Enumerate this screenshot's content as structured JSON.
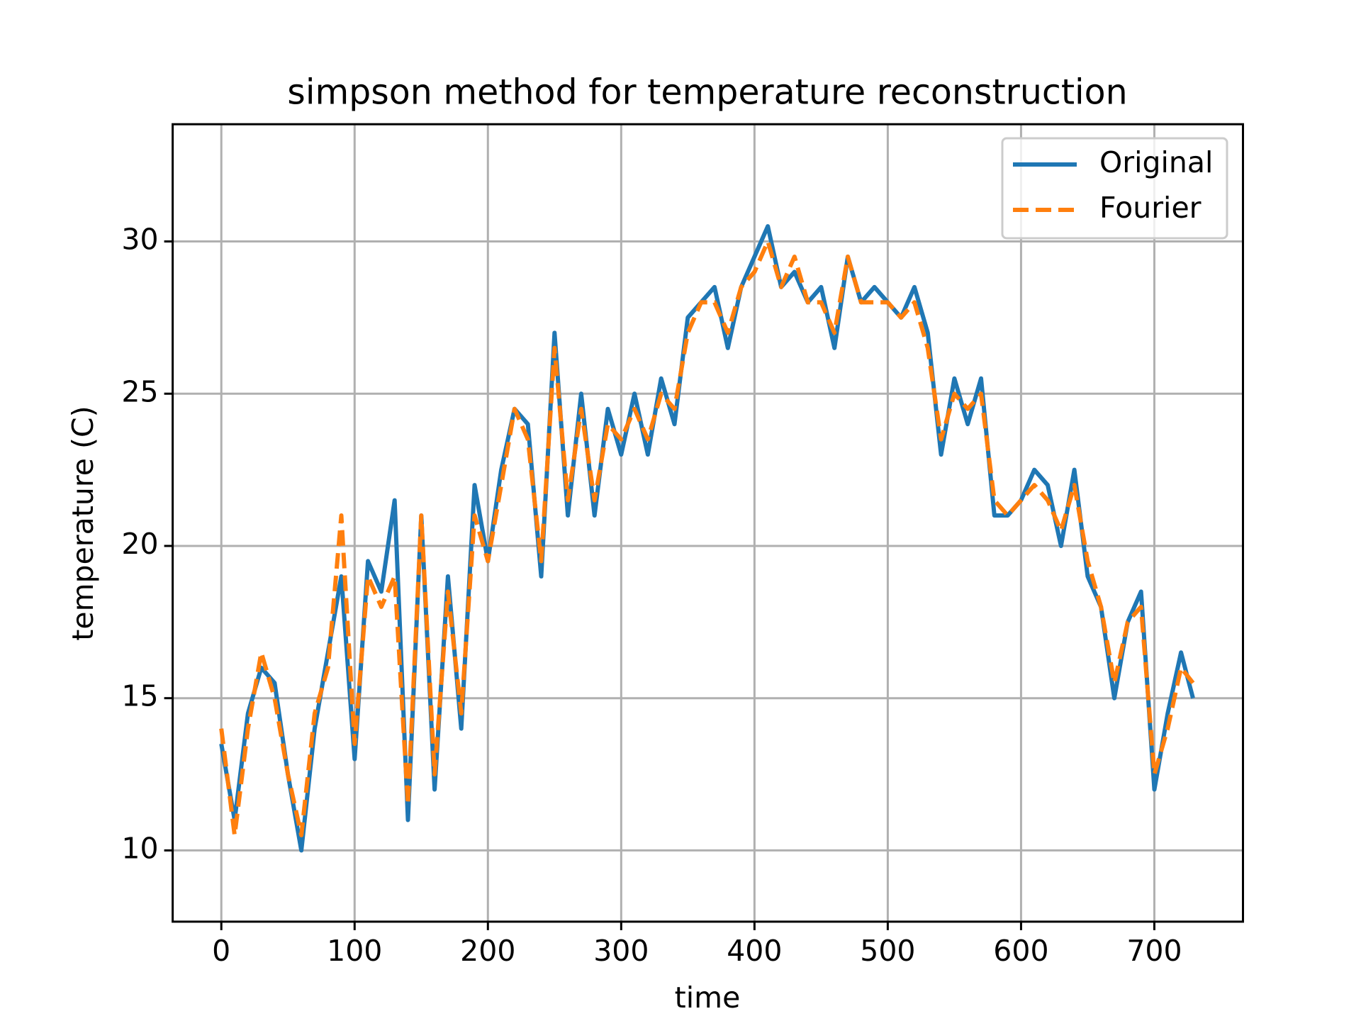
{
  "chart_data": {
    "type": "line",
    "title": "simpson method for temperature reconstruction",
    "x_label": "time",
    "y_label": "temperature (C)",
    "x": [
      0,
      10,
      20,
      30,
      40,
      50,
      60,
      70,
      80,
      90,
      100,
      110,
      120,
      130,
      140,
      150,
      160,
      170,
      180,
      190,
      200,
      210,
      220,
      230,
      240,
      250,
      260,
      270,
      280,
      290,
      300,
      310,
      320,
      330,
      340,
      350,
      360,
      370,
      380,
      390,
      400,
      410,
      420,
      430,
      440,
      450,
      460,
      470,
      480,
      490,
      500,
      510,
      520,
      530,
      540,
      550,
      560,
      570,
      580,
      590,
      600,
      610,
      620,
      630,
      640,
      650,
      660,
      670,
      680,
      690,
      700,
      710,
      720,
      729
    ],
    "series": [
      {
        "name": "Original",
        "color": "#1f77b4",
        "dash": false,
        "values": [
          13.5,
          11,
          14.5,
          16,
          15.5,
          12.5,
          10,
          14,
          16.5,
          19,
          13,
          19.5,
          18.5,
          21.5,
          11,
          21,
          12,
          19,
          14,
          22,
          19.5,
          22.5,
          24.5,
          24,
          19,
          27,
          21,
          25,
          21,
          24.5,
          23,
          25,
          23,
          25.5,
          24,
          27.5,
          28,
          28.5,
          26.5,
          28.5,
          29.5,
          30.5,
          28.5,
          29,
          28,
          28.5,
          26.5,
          29.5,
          28,
          28.5,
          28,
          27.5,
          28.5,
          27,
          23,
          25.5,
          24,
          25.5,
          21,
          21,
          21.5,
          22.5,
          22,
          20,
          22.5,
          19,
          18,
          15,
          17.5,
          18.5,
          12,
          14.5,
          16.5,
          15
        ]
      },
      {
        "name": "Fourier",
        "color": "#ff7f0e",
        "dash": true,
        "values": [
          14,
          10.5,
          14,
          16.5,
          15,
          12.5,
          10.5,
          14.5,
          16,
          21,
          13.5,
          19,
          18,
          19,
          11.5,
          21,
          12.5,
          18.5,
          14.5,
          21,
          19.5,
          22,
          24.5,
          23.5,
          19.5,
          26.5,
          21.5,
          24.5,
          21.5,
          24,
          23.5,
          24.5,
          23.5,
          25,
          24.5,
          27,
          28,
          28,
          27,
          28.5,
          29,
          30,
          28.5,
          29.5,
          28,
          28,
          27,
          29.5,
          28,
          28,
          28,
          27.5,
          28,
          26.5,
          23.5,
          25,
          24.5,
          25,
          21.5,
          21,
          21.5,
          22,
          21.5,
          20.5,
          22,
          19.5,
          18,
          15.5,
          17.5,
          18,
          12.5,
          14,
          16,
          15.5
        ]
      }
    ],
    "xlim": [
      -36.5,
      766.5
    ],
    "ylim": [
      7.66,
      33.85
    ],
    "xticks": [
      0,
      100,
      200,
      300,
      400,
      500,
      600,
      700
    ],
    "yticks": [
      10,
      15,
      20,
      25,
      30
    ],
    "grid": true,
    "legend": "upper right"
  }
}
